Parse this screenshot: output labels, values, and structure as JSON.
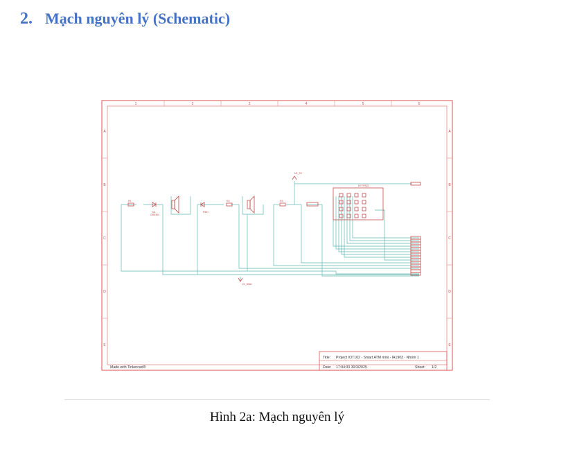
{
  "heading": {
    "number": "2.",
    "title": "Mạch nguyên lý (Schematic)"
  },
  "schematic": {
    "col_labels": [
      "1",
      "2",
      "3",
      "4",
      "5",
      "6"
    ],
    "row_labels": [
      "A",
      "B",
      "C",
      "D",
      "E"
    ],
    "made_with": "Made with Tinkercad®",
    "title_label": "Title:",
    "title_value": "Project IOT102 - Smart ATM mini - IA1903 - Nhóm 1",
    "date_label": "Date:",
    "date_value": "17:04:33 30/3/2025",
    "sheet_label": "Sheet:",
    "sheet_value": "1/2",
    "net_5v": "U1_5V",
    "net_gnd": "U1_GND",
    "keypad_label": "KEYPAD1",
    "r1": "R1",
    "r2": "R2",
    "r3": "R3",
    "d1": "D1",
    "green": "GREEN",
    "red": "RED",
    "colors": {
      "border": "#d9534f",
      "wire": "#5fb8b0",
      "part": "#c44a4a"
    }
  },
  "caption": "Hình 2a: Mạch nguyên lý"
}
